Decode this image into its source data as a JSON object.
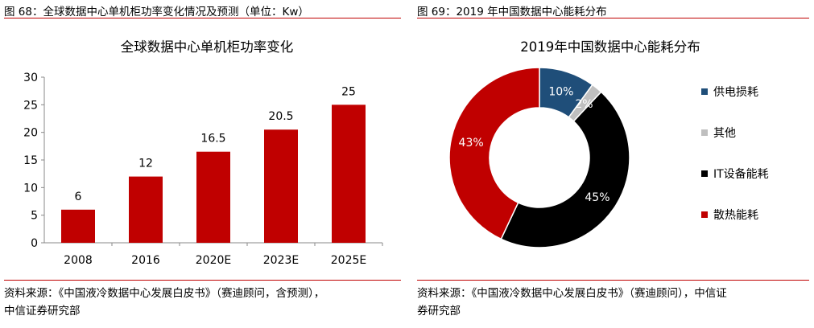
{
  "left": {
    "figure_title": "图 68：全球数据中心单机柜功率变化情况及预测（单位：Kw）",
    "source_line1": "资料来源：《中国液冷数据中心发展白皮书》（赛迪顾问，含预测），",
    "source_line2": "中信证券研究部"
  },
  "right": {
    "figure_title": "图 69：2019 年中国数据中心能耗分布",
    "source_line1": "资料来源：《中国液冷数据中心发展白皮书》（赛迪顾问），中信证",
    "source_line2": "券研究部"
  },
  "chart_data": [
    {
      "type": "bar",
      "title": "全球数据中心单机柜功率变化",
      "categories": [
        "2008",
        "2016",
        "2020E",
        "2023E",
        "2025E"
      ],
      "values": [
        6,
        12,
        16.5,
        20.5,
        25
      ],
      "data_labels": [
        "6",
        "12",
        "16.5",
        "20.5",
        "25"
      ],
      "ylim": [
        0,
        30
      ],
      "yticks": [
        0,
        5,
        10,
        15,
        20,
        25,
        30
      ],
      "xlabel": "",
      "ylabel": "",
      "grid": false,
      "colors": {
        "bar": "#c00000"
      }
    },
    {
      "type": "pie",
      "title": "2019年中国数据中心能耗分布",
      "donut": true,
      "labels": [
        "供电损耗",
        "其他",
        "IT设备能耗",
        "散热能耗"
      ],
      "values": [
        10,
        2,
        45,
        43
      ],
      "data_labels": [
        "10%",
        "2%",
        "45%",
        "43%"
      ],
      "colors": [
        "#1f4e79",
        "#bfbfbf",
        "#000000",
        "#c00000"
      ],
      "legend_position": "right"
    }
  ]
}
